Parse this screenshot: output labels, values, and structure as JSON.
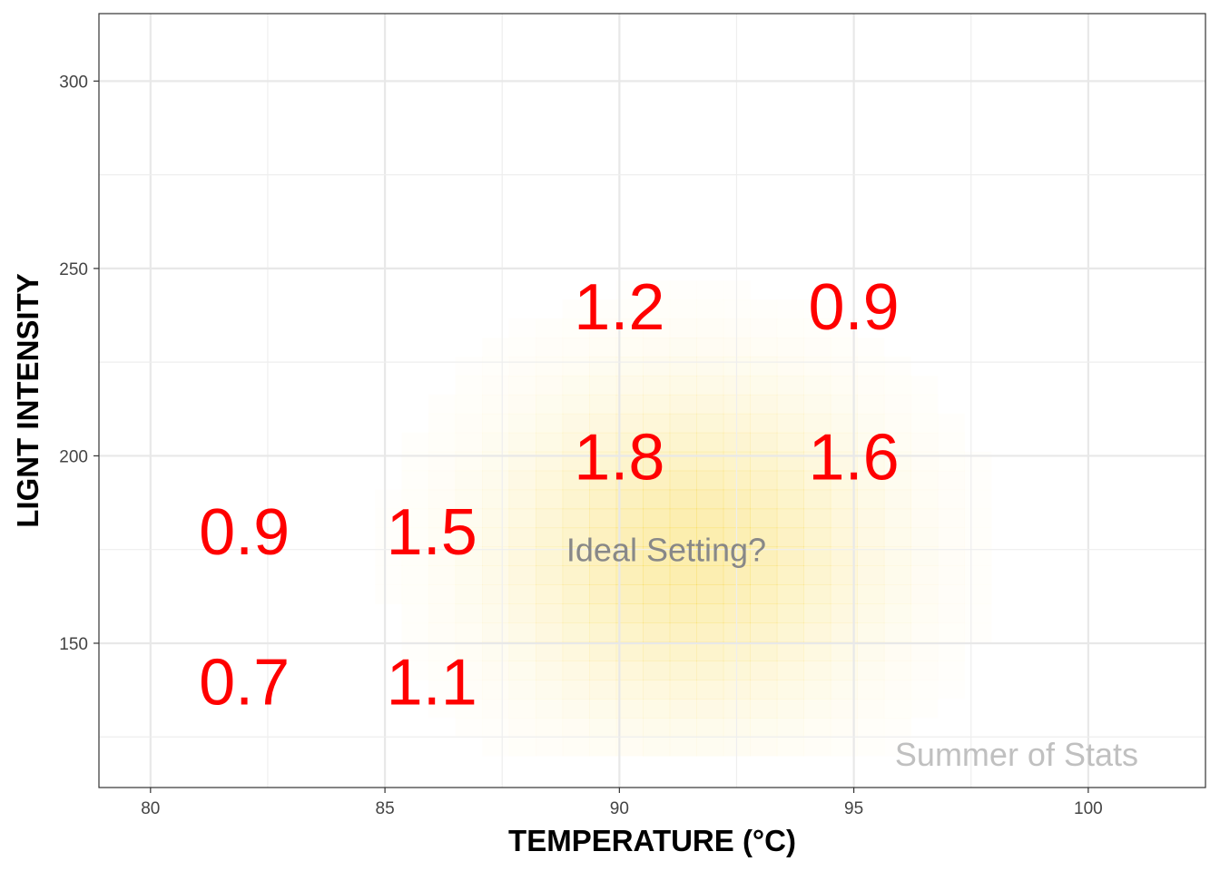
{
  "chart_data": {
    "type": "heatmap",
    "title": "",
    "xlabel": "TEMPERATURE (°C)",
    "ylabel": "LIGNT INTENSITY",
    "xlim": [
      78.9,
      102.5
    ],
    "ylim": [
      111.5,
      318
    ],
    "x_ticks": [
      80,
      85,
      90,
      95,
      100
    ],
    "y_ticks": [
      150,
      200,
      250,
      300
    ],
    "grid": true,
    "density_color": "#f5c800",
    "density_center": {
      "x": 91.5,
      "y": 175
    },
    "density_spread": {
      "x": 2.6,
      "y": 28
    },
    "value_color": "#ff0000",
    "points": [
      {
        "x": 82,
        "y": 140,
        "value": "0.7"
      },
      {
        "x": 86,
        "y": 140,
        "value": "1.1"
      },
      {
        "x": 82,
        "y": 180,
        "value": "0.9"
      },
      {
        "x": 86,
        "y": 180,
        "value": "1.5"
      },
      {
        "x": 90,
        "y": 200,
        "value": "1.8"
      },
      {
        "x": 95,
        "y": 200,
        "value": "1.6"
      },
      {
        "x": 90,
        "y": 240,
        "value": "1.2"
      },
      {
        "x": 95,
        "y": 240,
        "value": "0.9"
      }
    ],
    "annotations": [
      {
        "text": "Ideal Setting?",
        "x": 91,
        "y": 175,
        "color": "#888888"
      }
    ],
    "caption": {
      "text": "Summer of Stats",
      "color": "#c0c0c0"
    }
  }
}
